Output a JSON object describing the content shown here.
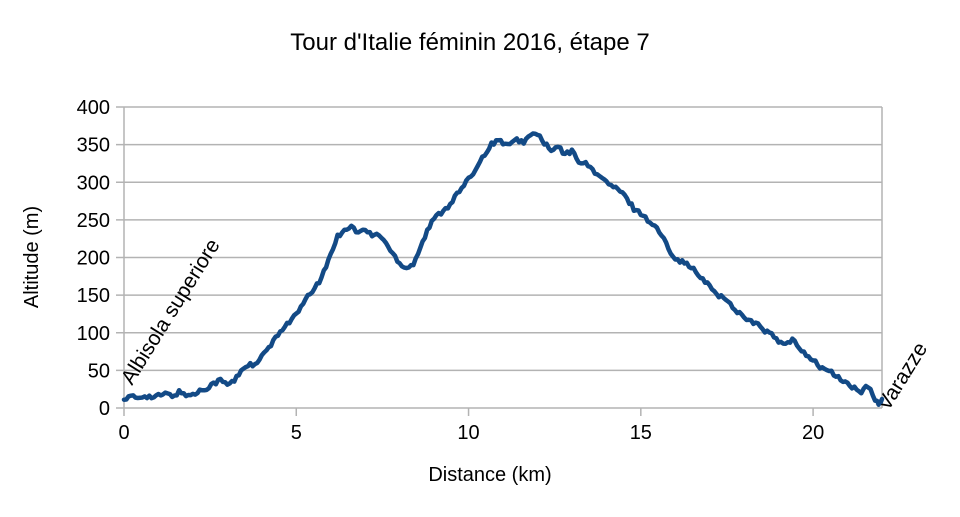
{
  "chart_data": {
    "type": "line",
    "title": "Tour d'Italie féminin 2016, étape 7",
    "xlabel": "Distance (km)",
    "ylabel": "Altitude (m)",
    "xlim": [
      0,
      22
    ],
    "ylim": [
      0,
      400
    ],
    "x_ticks": [
      0,
      5,
      10,
      15,
      20
    ],
    "y_ticks": [
      0,
      50,
      100,
      150,
      200,
      250,
      300,
      350,
      400
    ],
    "grid": "horizontal",
    "legend": "none",
    "line_color": "#134a86",
    "grid_color": "#b3b3b3",
    "axis_color": "#b3b3b3",
    "text_color": "#000000",
    "annotations": [
      {
        "text": "Albisola superiore",
        "x_km": 0,
        "altitude_m": 11,
        "rotation_deg": -58
      },
      {
        "text": "Varazze",
        "x_km": 22,
        "altitude_m": 12,
        "rotation_deg": -58
      }
    ],
    "series": [
      {
        "name": "Altitude profile",
        "points": [
          [
            0.0,
            11
          ],
          [
            0.2,
            15
          ],
          [
            0.4,
            13
          ],
          [
            0.6,
            17
          ],
          [
            0.8,
            14
          ],
          [
            1.0,
            16
          ],
          [
            1.2,
            19
          ],
          [
            1.4,
            16
          ],
          [
            1.6,
            21
          ],
          [
            1.8,
            18
          ],
          [
            2.0,
            17
          ],
          [
            2.2,
            23
          ],
          [
            2.4,
            27
          ],
          [
            2.6,
            33
          ],
          [
            2.8,
            37
          ],
          [
            3.0,
            31
          ],
          [
            3.2,
            36
          ],
          [
            3.4,
            50
          ],
          [
            3.6,
            58
          ],
          [
            3.8,
            56
          ],
          [
            4.0,
            68
          ],
          [
            4.2,
            80
          ],
          [
            4.4,
            92
          ],
          [
            4.6,
            106
          ],
          [
            4.8,
            115
          ],
          [
            5.0,
            124
          ],
          [
            5.2,
            138
          ],
          [
            5.4,
            152
          ],
          [
            5.6,
            163
          ],
          [
            5.8,
            180
          ],
          [
            6.0,
            205
          ],
          [
            6.2,
            228
          ],
          [
            6.4,
            238
          ],
          [
            6.6,
            241
          ],
          [
            6.8,
            233
          ],
          [
            7.0,
            237
          ],
          [
            7.2,
            229
          ],
          [
            7.4,
            231
          ],
          [
            7.6,
            219
          ],
          [
            7.8,
            205
          ],
          [
            8.0,
            193
          ],
          [
            8.2,
            186
          ],
          [
            8.4,
            192
          ],
          [
            8.6,
            213
          ],
          [
            8.8,
            235
          ],
          [
            9.0,
            252
          ],
          [
            9.2,
            260
          ],
          [
            9.4,
            268
          ],
          [
            9.6,
            280
          ],
          [
            9.8,
            292
          ],
          [
            10.0,
            303
          ],
          [
            10.2,
            318
          ],
          [
            10.4,
            333
          ],
          [
            10.6,
            347
          ],
          [
            10.8,
            356
          ],
          [
            11.0,
            353
          ],
          [
            11.2,
            349
          ],
          [
            11.4,
            356
          ],
          [
            11.6,
            354
          ],
          [
            11.8,
            362
          ],
          [
            12.0,
            365
          ],
          [
            12.2,
            352
          ],
          [
            12.4,
            341
          ],
          [
            12.6,
            347
          ],
          [
            12.8,
            337
          ],
          [
            13.0,
            341
          ],
          [
            13.2,
            329
          ],
          [
            13.4,
            324
          ],
          [
            13.6,
            317
          ],
          [
            13.8,
            308
          ],
          [
            14.0,
            300
          ],
          [
            14.2,
            294
          ],
          [
            14.4,
            288
          ],
          [
            14.6,
            278
          ],
          [
            14.8,
            265
          ],
          [
            15.0,
            259
          ],
          [
            15.2,
            250
          ],
          [
            15.4,
            242
          ],
          [
            15.6,
            230
          ],
          [
            15.8,
            212
          ],
          [
            16.0,
            200
          ],
          [
            16.2,
            194
          ],
          [
            16.4,
            190
          ],
          [
            16.6,
            180
          ],
          [
            16.8,
            170
          ],
          [
            17.0,
            162
          ],
          [
            17.2,
            152
          ],
          [
            17.4,
            146
          ],
          [
            17.6,
            138
          ],
          [
            17.8,
            128
          ],
          [
            18.0,
            122
          ],
          [
            18.2,
            115
          ],
          [
            18.4,
            110
          ],
          [
            18.6,
            103
          ],
          [
            18.8,
            97
          ],
          [
            19.0,
            88
          ],
          [
            19.2,
            84
          ],
          [
            19.4,
            90
          ],
          [
            19.6,
            80
          ],
          [
            19.8,
            72
          ],
          [
            20.0,
            63
          ],
          [
            20.2,
            55
          ],
          [
            20.4,
            50
          ],
          [
            20.6,
            45
          ],
          [
            20.8,
            38
          ],
          [
            21.0,
            32
          ],
          [
            21.2,
            26
          ],
          [
            21.4,
            21
          ],
          [
            21.6,
            29
          ],
          [
            21.8,
            10
          ],
          [
            21.9,
            7
          ],
          [
            22.0,
            12
          ]
        ]
      }
    ]
  }
}
